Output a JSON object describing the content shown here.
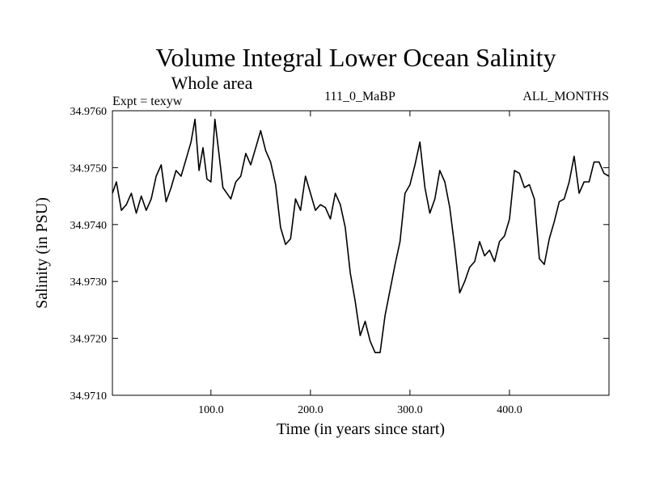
{
  "chart_data": {
    "type": "line",
    "title": "Volume Integral Lower Ocean Salinity",
    "subtitle": "Whole area",
    "header_left": "Expt = texyw",
    "header_center": "111_0_MaBP",
    "header_right": "ALL_MONTHS",
    "xlabel": "Time (in years since start)",
    "ylabel": "Salinity (in PSU)",
    "xlim": [
      1,
      500
    ],
    "ylim": [
      34.971,
      34.976
    ],
    "xticks": [
      100,
      200,
      300,
      400
    ],
    "xtick_labels": [
      "100.0",
      "200.0",
      "300.0",
      "400.0"
    ],
    "yticks": [
      34.971,
      34.972,
      34.973,
      34.974,
      34.975,
      34.976
    ],
    "ytick_labels": [
      "34.9710",
      "34.9720",
      "34.9730",
      "34.9740",
      "34.9750",
      "34.9760"
    ],
    "grid": false,
    "line_color": "#000000",
    "series": [
      {
        "x": [
          1,
          5,
          10,
          15,
          20,
          25,
          30,
          35,
          40,
          45,
          50,
          55,
          60,
          65,
          70,
          75,
          80,
          84,
          88,
          92,
          96,
          100,
          104,
          108,
          112,
          116,
          120,
          125,
          130,
          135,
          140,
          145,
          150,
          155,
          160,
          165,
          170,
          175,
          180,
          185,
          190,
          195,
          200,
          205,
          210,
          215,
          220,
          225,
          230,
          235,
          240,
          245,
          250,
          255,
          260,
          265,
          270,
          275,
          280,
          285,
          290,
          295,
          300,
          305,
          310,
          315,
          320,
          325,
          330,
          335,
          340,
          345,
          350,
          355,
          360,
          365,
          370,
          375,
          380,
          385,
          390,
          395,
          400,
          405,
          410,
          415,
          420,
          425,
          430,
          435,
          440,
          445,
          450,
          455,
          460,
          465,
          470,
          475,
          480,
          485,
          490,
          495,
          500
        ],
        "y": [
          34.97455,
          34.97475,
          34.97425,
          34.97435,
          34.97455,
          34.9742,
          34.9745,
          34.97425,
          34.97445,
          34.97485,
          34.97505,
          34.9744,
          34.97465,
          34.97495,
          34.97485,
          34.97515,
          34.97545,
          34.97585,
          34.97495,
          34.97535,
          34.9748,
          34.97475,
          34.97585,
          34.97525,
          34.97465,
          34.97455,
          34.97445,
          34.97475,
          34.97485,
          34.97525,
          34.97505,
          34.97535,
          34.97565,
          34.9753,
          34.9751,
          34.9747,
          34.97395,
          34.97365,
          34.97375,
          34.97445,
          34.97425,
          34.97485,
          34.97455,
          34.97425,
          34.97435,
          34.9743,
          34.9741,
          34.97455,
          34.97435,
          34.97395,
          34.97315,
          34.97265,
          34.97205,
          34.9723,
          34.97195,
          34.97175,
          34.97175,
          34.9724,
          34.97285,
          34.9733,
          34.9737,
          34.97455,
          34.9747,
          34.97505,
          34.97545,
          34.97465,
          34.9742,
          34.97445,
          34.97495,
          34.97475,
          34.9743,
          34.9736,
          34.9728,
          34.973,
          34.97325,
          34.97335,
          34.9737,
          34.97345,
          34.97355,
          34.97335,
          34.9737,
          34.9738,
          34.9741,
          34.97495,
          34.9749,
          34.97465,
          34.9747,
          34.97445,
          34.9734,
          34.9733,
          34.97375,
          34.97405,
          34.9744,
          34.97445,
          34.97475,
          34.9752,
          34.97455,
          34.97475,
          34.97475,
          34.9751,
          34.9751,
          34.9749,
          34.97485
        ]
      }
    ]
  }
}
